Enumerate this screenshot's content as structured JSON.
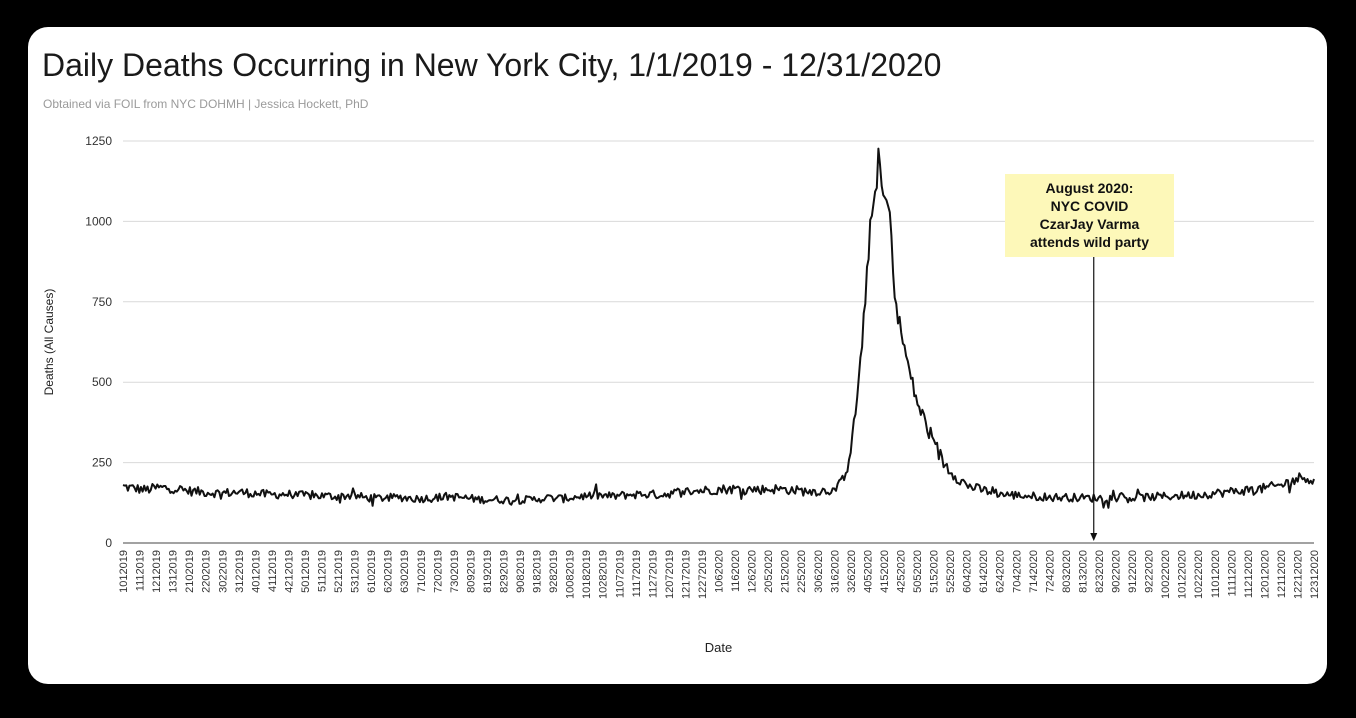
{
  "chart_data": {
    "type": "line",
    "title": "Daily Deaths Occurring in New York City, 1/1/2019 - 12/31/2020",
    "subtitle": "Obtained via FOIL from NYC DOHMH | Jessica Hockett, PhD",
    "xlabel": "Date",
    "ylabel": "Deaths (All Causes)",
    "ylim": [
      0,
      1250
    ],
    "yticks": [
      0,
      250,
      500,
      750,
      1000,
      1250
    ],
    "grid": true,
    "legend": "none",
    "colors": {
      "line": "#111111",
      "grid": "#d9d9d9",
      "callout_bg": "#fdf8b9"
    },
    "xticks": [
      "1012019",
      "1112019",
      "1212019",
      "1312019",
      "2102019",
      "2202019",
      "3022019",
      "3122019",
      "4012019",
      "4112019",
      "4212019",
      "5012019",
      "5112019",
      "5212019",
      "5312019",
      "6102019",
      "6202019",
      "6302019",
      "7102019",
      "7202019",
      "7302019",
      "8092019",
      "8192019",
      "8292019",
      "9082019",
      "9182019",
      "9282019",
      "10082019",
      "10182019",
      "10282019",
      "11072019",
      "11172019",
      "11272019",
      "12072019",
      "12172019",
      "12272019",
      "1062020",
      "1162020",
      "1262020",
      "2052020",
      "2152020",
      "2252020",
      "3062020",
      "3162020",
      "3262020",
      "4052020",
      "4152020",
      "4252020",
      "5052020",
      "5152020",
      "5252020",
      "6042020",
      "6142020",
      "6242020",
      "7042020",
      "7142020",
      "7242020",
      "8032020",
      "8132020",
      "8232020",
      "9022020",
      "9122020",
      "9222020",
      "10022020",
      "10122020",
      "10222020",
      "11012020",
      "11112020",
      "11212020",
      "12012020",
      "12112020",
      "12212020",
      "12312020"
    ],
    "x_start": "2019-01-01",
    "x_end": "2020-12-31",
    "series": [
      {
        "points": [
          [
            "2019-01-01",
            175
          ],
          [
            "2019-01-08",
            170
          ],
          [
            "2019-01-15",
            165
          ],
          [
            "2019-01-22",
            172
          ],
          [
            "2019-02-01",
            170
          ],
          [
            "2019-02-10",
            162
          ],
          [
            "2019-02-20",
            158
          ],
          [
            "2019-03-02",
            155
          ],
          [
            "2019-03-12",
            158
          ],
          [
            "2019-03-22",
            155
          ],
          [
            "2019-04-01",
            150
          ],
          [
            "2019-04-11",
            152
          ],
          [
            "2019-04-21",
            148
          ],
          [
            "2019-05-01",
            147
          ],
          [
            "2019-05-11",
            145
          ],
          [
            "2019-05-21",
            148
          ],
          [
            "2019-05-31",
            140
          ],
          [
            "2019-06-10",
            140
          ],
          [
            "2019-06-20",
            142
          ],
          [
            "2019-06-30",
            138
          ],
          [
            "2019-07-10",
            140
          ],
          [
            "2019-07-20",
            145
          ],
          [
            "2019-07-30",
            140
          ],
          [
            "2019-08-09",
            135
          ],
          [
            "2019-08-19",
            135
          ],
          [
            "2019-08-29",
            133
          ],
          [
            "2019-09-08",
            135
          ],
          [
            "2019-09-18",
            140
          ],
          [
            "2019-09-28",
            138
          ],
          [
            "2019-10-08",
            145
          ],
          [
            "2019-10-18",
            148
          ],
          [
            "2019-10-28",
            145
          ],
          [
            "2019-11-07",
            150
          ],
          [
            "2019-11-17",
            152
          ],
          [
            "2019-11-27",
            150
          ],
          [
            "2019-12-07",
            158
          ],
          [
            "2019-12-17",
            162
          ],
          [
            "2019-12-27",
            165
          ],
          [
            "2020-01-06",
            168
          ],
          [
            "2020-01-16",
            168
          ],
          [
            "2020-01-26",
            166
          ],
          [
            "2020-02-05",
            168
          ],
          [
            "2020-02-15",
            165
          ],
          [
            "2020-02-25",
            160
          ],
          [
            "2020-03-06",
            162
          ],
          [
            "2020-03-12",
            165
          ],
          [
            "2020-03-16",
            185
          ],
          [
            "2020-03-20",
            240
          ],
          [
            "2020-03-24",
            360
          ],
          [
            "2020-03-28",
            560
          ],
          [
            "2020-03-31",
            760
          ],
          [
            "2020-04-03",
            980
          ],
          [
            "2020-04-05",
            1050
          ],
          [
            "2020-04-07",
            1140
          ],
          [
            "2020-04-08",
            1200
          ],
          [
            "2020-04-09",
            1170
          ],
          [
            "2020-04-10",
            1100
          ],
          [
            "2020-04-12",
            1065
          ],
          [
            "2020-04-14",
            1050
          ],
          [
            "2020-04-16",
            960
          ],
          [
            "2020-04-18",
            770
          ],
          [
            "2020-04-21",
            680
          ],
          [
            "2020-04-25",
            580
          ],
          [
            "2020-04-29",
            490
          ],
          [
            "2020-05-03",
            420
          ],
          [
            "2020-05-08",
            360
          ],
          [
            "2020-05-13",
            300
          ],
          [
            "2020-05-18",
            250
          ],
          [
            "2020-05-25",
            210
          ],
          [
            "2020-06-01",
            180
          ],
          [
            "2020-06-08",
            168
          ],
          [
            "2020-06-15",
            160
          ],
          [
            "2020-06-25",
            150
          ],
          [
            "2020-07-04",
            148
          ],
          [
            "2020-07-14",
            145
          ],
          [
            "2020-07-24",
            142
          ],
          [
            "2020-08-03",
            142
          ],
          [
            "2020-08-13",
            140
          ],
          [
            "2020-08-23",
            140
          ],
          [
            "2020-09-02",
            142
          ],
          [
            "2020-09-12",
            140
          ],
          [
            "2020-09-22",
            143
          ],
          [
            "2020-10-02",
            145
          ],
          [
            "2020-10-12",
            148
          ],
          [
            "2020-10-22",
            150
          ],
          [
            "2020-11-01",
            155
          ],
          [
            "2020-11-11",
            160
          ],
          [
            "2020-11-21",
            165
          ],
          [
            "2020-12-01",
            170
          ],
          [
            "2020-12-11",
            180
          ],
          [
            "2020-12-21",
            200
          ],
          [
            "2020-12-26",
            208
          ],
          [
            "2020-12-31",
            190
          ]
        ]
      }
    ],
    "annotation": {
      "lines": [
        "August 2020:",
        "NYC COVID",
        "CzarJay Varma",
        "attends wild party"
      ],
      "arrow_date": "2020-08-18"
    }
  }
}
